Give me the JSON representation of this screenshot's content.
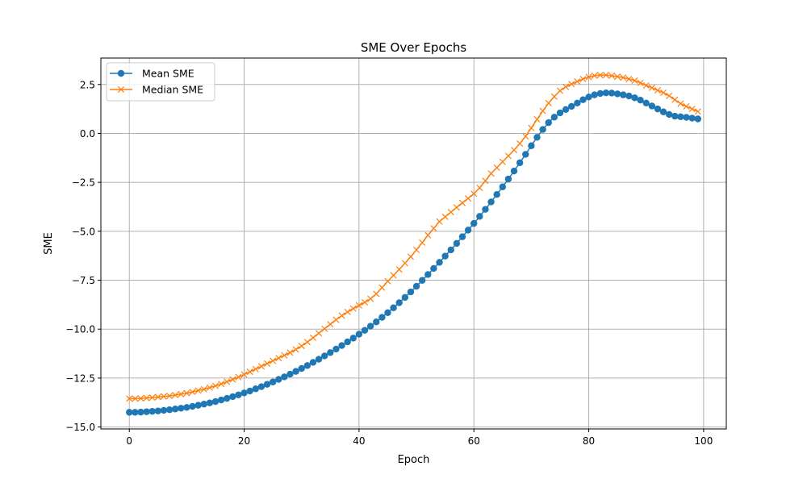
{
  "chart_data": {
    "type": "line",
    "title": "SME Over Epochs",
    "xlabel": "Epoch",
    "ylabel": "SME",
    "xlim": [
      -4.95,
      103.95
    ],
    "ylim": [
      -15.1,
      3.85
    ],
    "xticks": [
      0,
      20,
      40,
      60,
      80,
      100
    ],
    "xtick_labels": [
      "0",
      "20",
      "40",
      "60",
      "80",
      "100"
    ],
    "yticks": [
      -15.0,
      -12.5,
      -10.0,
      -7.5,
      -5.0,
      -2.5,
      0.0,
      2.5
    ],
    "ytick_labels": [
      "−15.0",
      "−12.5",
      "−10.0",
      "−7.5",
      "−5.0",
      "−2.5",
      "0.0",
      "2.5"
    ],
    "grid": true,
    "legend_position": "top-left",
    "x": [
      0,
      1,
      2,
      3,
      4,
      5,
      6,
      7,
      8,
      9,
      10,
      11,
      12,
      13,
      14,
      15,
      16,
      17,
      18,
      19,
      20,
      21,
      22,
      23,
      24,
      25,
      26,
      27,
      28,
      29,
      30,
      31,
      32,
      33,
      34,
      35,
      36,
      37,
      38,
      39,
      40,
      41,
      42,
      43,
      44,
      45,
      46,
      47,
      48,
      49,
      50,
      51,
      52,
      53,
      54,
      55,
      56,
      57,
      58,
      59,
      60,
      61,
      62,
      63,
      64,
      65,
      66,
      67,
      68,
      69,
      70,
      71,
      72,
      73,
      74,
      75,
      76,
      77,
      78,
      79,
      80,
      81,
      82,
      83,
      84,
      85,
      86,
      87,
      88,
      89,
      90,
      91,
      92,
      93,
      94,
      95,
      96,
      97,
      98,
      99
    ],
    "series": [
      {
        "name": "Mean SME",
        "color": "#1f77b4",
        "marker": "circle",
        "values": [
          -14.25,
          -14.25,
          -14.24,
          -14.22,
          -14.2,
          -14.18,
          -14.15,
          -14.12,
          -14.08,
          -14.04,
          -14.0,
          -13.95,
          -13.89,
          -13.83,
          -13.77,
          -13.7,
          -13.62,
          -13.54,
          -13.45,
          -13.36,
          -13.26,
          -13.16,
          -13.05,
          -12.94,
          -12.82,
          -12.7,
          -12.57,
          -12.44,
          -12.3,
          -12.16,
          -12.01,
          -11.86,
          -11.7,
          -11.54,
          -11.37,
          -11.2,
          -11.02,
          -10.84,
          -10.65,
          -10.46,
          -10.26,
          -10.06,
          -9.85,
          -9.63,
          -9.4,
          -9.16,
          -8.91,
          -8.65,
          -8.38,
          -8.1,
          -7.81,
          -7.51,
          -7.21,
          -6.9,
          -6.59,
          -6.27,
          -5.95,
          -5.62,
          -5.28,
          -4.94,
          -4.6,
          -4.24,
          -3.88,
          -3.5,
          -3.12,
          -2.73,
          -2.33,
          -1.92,
          -1.5,
          -1.07,
          -0.63,
          -0.2,
          0.2,
          0.55,
          0.83,
          1.05,
          1.22,
          1.38,
          1.55,
          1.72,
          1.86,
          1.97,
          2.04,
          2.07,
          2.06,
          2.02,
          1.97,
          1.91,
          1.82,
          1.7,
          1.55,
          1.4,
          1.25,
          1.1,
          0.97,
          0.88,
          0.85,
          0.82,
          0.78,
          0.74
        ]
      },
      {
        "name": "Median SME",
        "color": "#ff7f0e",
        "marker": "x",
        "values": [
          -13.55,
          -13.55,
          -13.54,
          -13.52,
          -13.5,
          -13.47,
          -13.44,
          -13.41,
          -13.37,
          -13.32,
          -13.27,
          -13.21,
          -13.14,
          -13.07,
          -12.99,
          -12.9,
          -12.8,
          -12.69,
          -12.57,
          -12.45,
          -12.32,
          -12.18,
          -12.04,
          -11.9,
          -11.76,
          -11.62,
          -11.48,
          -11.34,
          -11.2,
          -11.04,
          -10.86,
          -10.66,
          -10.44,
          -10.21,
          -9.98,
          -9.75,
          -9.52,
          -9.31,
          -9.12,
          -8.95,
          -8.79,
          -8.63,
          -8.45,
          -8.2,
          -7.88,
          -7.55,
          -7.25,
          -6.95,
          -6.63,
          -6.3,
          -5.95,
          -5.58,
          -5.2,
          -4.85,
          -4.5,
          -4.26,
          -4.02,
          -3.78,
          -3.55,
          -3.32,
          -3.08,
          -2.78,
          -2.42,
          -2.05,
          -1.75,
          -1.45,
          -1.15,
          -0.85,
          -0.52,
          -0.15,
          0.28,
          0.72,
          1.15,
          1.55,
          1.88,
          2.18,
          2.38,
          2.52,
          2.65,
          2.78,
          2.88,
          2.95,
          2.98,
          2.98,
          2.95,
          2.9,
          2.85,
          2.78,
          2.7,
          2.58,
          2.45,
          2.33,
          2.2,
          2.08,
          1.92,
          1.72,
          1.52,
          1.38,
          1.25,
          1.12
        ]
      }
    ]
  }
}
